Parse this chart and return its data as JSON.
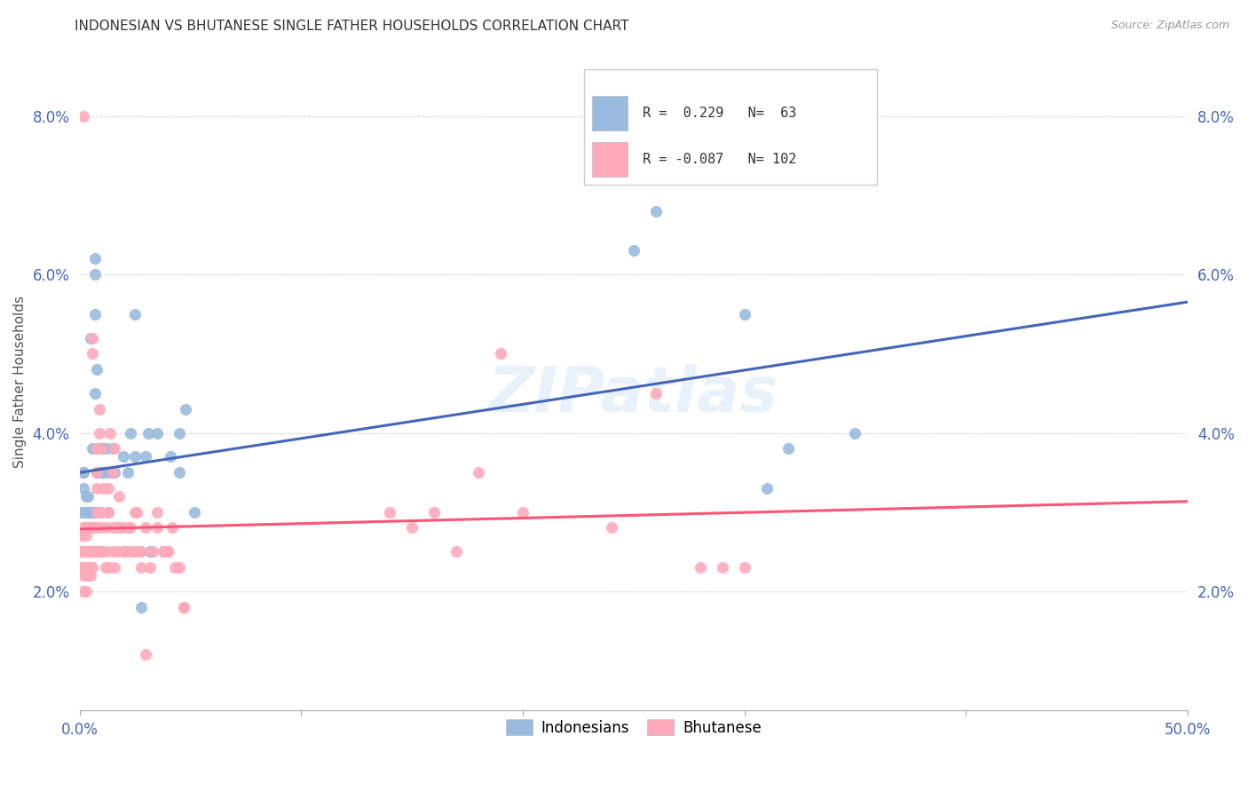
{
  "title": "INDONESIAN VS BHUTANESE SINGLE FATHER HOUSEHOLDS CORRELATION CHART",
  "source": "Source: ZipAtlas.com",
  "ylabel": "Single Father Households",
  "legend_blue_label": "Indonesians",
  "legend_pink_label": "Bhutanese",
  "legend_blue_text": "R =  0.229   N=  63",
  "legend_pink_text": "R = -0.087   N= 102",
  "blue_color": "#99BBDD",
  "pink_color": "#FFAABB",
  "trendline_blue_color": "#4466BB",
  "trendline_pink_color": "#FF5577",
  "trendline_dashed_color": "#AABBCC",
  "watermark": "ZIPatlas",
  "xmin": 0.0,
  "xmax": 0.5,
  "ymin": 0.005,
  "ymax": 0.088,
  "ytick_vals": [
    0.02,
    0.04,
    0.06,
    0.08
  ],
  "xtick_vals": [
    0.0,
    0.1,
    0.2,
    0.3,
    0.4,
    0.5
  ],
  "blue_points": [
    [
      0.001,
      0.03
    ],
    [
      0.002,
      0.035
    ],
    [
      0.002,
      0.033
    ],
    [
      0.002,
      0.035
    ],
    [
      0.003,
      0.03
    ],
    [
      0.003,
      0.032
    ],
    [
      0.003,
      0.03
    ],
    [
      0.003,
      0.028
    ],
    [
      0.003,
      0.03
    ],
    [
      0.004,
      0.03
    ],
    [
      0.004,
      0.028
    ],
    [
      0.004,
      0.03
    ],
    [
      0.004,
      0.032
    ],
    [
      0.005,
      0.03
    ],
    [
      0.005,
      0.028
    ],
    [
      0.005,
      0.052
    ],
    [
      0.005,
      0.03
    ],
    [
      0.006,
      0.03
    ],
    [
      0.006,
      0.028
    ],
    [
      0.006,
      0.03
    ],
    [
      0.006,
      0.038
    ],
    [
      0.007,
      0.045
    ],
    [
      0.007,
      0.03
    ],
    [
      0.007,
      0.055
    ],
    [
      0.007,
      0.06
    ],
    [
      0.007,
      0.062
    ],
    [
      0.008,
      0.048
    ],
    [
      0.008,
      0.03
    ],
    [
      0.008,
      0.035
    ],
    [
      0.009,
      0.03
    ],
    [
      0.01,
      0.035
    ],
    [
      0.01,
      0.035
    ],
    [
      0.01,
      0.038
    ],
    [
      0.011,
      0.035
    ],
    [
      0.012,
      0.038
    ],
    [
      0.013,
      0.035
    ],
    [
      0.013,
      0.03
    ],
    [
      0.015,
      0.038
    ],
    [
      0.015,
      0.035
    ],
    [
      0.016,
      0.035
    ],
    [
      0.018,
      0.028
    ],
    [
      0.02,
      0.037
    ],
    [
      0.022,
      0.035
    ],
    [
      0.023,
      0.04
    ],
    [
      0.025,
      0.037
    ],
    [
      0.025,
      0.055
    ],
    [
      0.028,
      0.018
    ],
    [
      0.03,
      0.037
    ],
    [
      0.031,
      0.04
    ],
    [
      0.032,
      0.025
    ],
    [
      0.035,
      0.04
    ],
    [
      0.038,
      0.025
    ],
    [
      0.041,
      0.037
    ],
    [
      0.045,
      0.035
    ],
    [
      0.045,
      0.04
    ],
    [
      0.048,
      0.043
    ],
    [
      0.052,
      0.03
    ],
    [
      0.25,
      0.063
    ],
    [
      0.26,
      0.068
    ],
    [
      0.3,
      0.055
    ],
    [
      0.31,
      0.033
    ],
    [
      0.32,
      0.038
    ],
    [
      0.35,
      0.04
    ]
  ],
  "pink_points": [
    [
      0.001,
      0.027
    ],
    [
      0.001,
      0.025
    ],
    [
      0.001,
      0.023
    ],
    [
      0.002,
      0.028
    ],
    [
      0.002,
      0.025
    ],
    [
      0.002,
      0.023
    ],
    [
      0.002,
      0.02
    ],
    [
      0.002,
      0.022
    ],
    [
      0.002,
      0.025
    ],
    [
      0.002,
      0.08
    ],
    [
      0.003,
      0.027
    ],
    [
      0.003,
      0.023
    ],
    [
      0.003,
      0.02
    ],
    [
      0.003,
      0.022
    ],
    [
      0.003,
      0.025
    ],
    [
      0.003,
      0.028
    ],
    [
      0.004,
      0.022
    ],
    [
      0.004,
      0.025
    ],
    [
      0.004,
      0.023
    ],
    [
      0.004,
      0.025
    ],
    [
      0.004,
      0.028
    ],
    [
      0.005,
      0.022
    ],
    [
      0.005,
      0.025
    ],
    [
      0.005,
      0.028
    ],
    [
      0.005,
      0.023
    ],
    [
      0.005,
      0.023
    ],
    [
      0.006,
      0.025
    ],
    [
      0.006,
      0.023
    ],
    [
      0.006,
      0.025
    ],
    [
      0.006,
      0.028
    ],
    [
      0.006,
      0.05
    ],
    [
      0.006,
      0.052
    ],
    [
      0.007,
      0.028
    ],
    [
      0.007,
      0.025
    ],
    [
      0.007,
      0.028
    ],
    [
      0.008,
      0.03
    ],
    [
      0.008,
      0.033
    ],
    [
      0.008,
      0.035
    ],
    [
      0.008,
      0.038
    ],
    [
      0.008,
      0.025
    ],
    [
      0.009,
      0.04
    ],
    [
      0.009,
      0.043
    ],
    [
      0.009,
      0.028
    ],
    [
      0.009,
      0.025
    ],
    [
      0.01,
      0.03
    ],
    [
      0.01,
      0.025
    ],
    [
      0.01,
      0.038
    ],
    [
      0.01,
      0.025
    ],
    [
      0.011,
      0.033
    ],
    [
      0.012,
      0.028
    ],
    [
      0.012,
      0.025
    ],
    [
      0.012,
      0.023
    ],
    [
      0.013,
      0.03
    ],
    [
      0.013,
      0.033
    ],
    [
      0.013,
      0.023
    ],
    [
      0.014,
      0.04
    ],
    [
      0.015,
      0.035
    ],
    [
      0.015,
      0.025
    ],
    [
      0.015,
      0.028
    ],
    [
      0.016,
      0.038
    ],
    [
      0.016,
      0.023
    ],
    [
      0.017,
      0.025
    ],
    [
      0.018,
      0.028
    ],
    [
      0.018,
      0.032
    ],
    [
      0.019,
      0.028
    ],
    [
      0.02,
      0.025
    ],
    [
      0.021,
      0.025
    ],
    [
      0.021,
      0.025
    ],
    [
      0.022,
      0.028
    ],
    [
      0.023,
      0.028
    ],
    [
      0.024,
      0.025
    ],
    [
      0.025,
      0.03
    ],
    [
      0.025,
      0.025
    ],
    [
      0.026,
      0.03
    ],
    [
      0.027,
      0.025
    ],
    [
      0.028,
      0.023
    ],
    [
      0.028,
      0.025
    ],
    [
      0.03,
      0.012
    ],
    [
      0.03,
      0.028
    ],
    [
      0.032,
      0.023
    ],
    [
      0.033,
      0.025
    ],
    [
      0.035,
      0.03
    ],
    [
      0.035,
      0.028
    ],
    [
      0.038,
      0.025
    ],
    [
      0.04,
      0.025
    ],
    [
      0.04,
      0.025
    ],
    [
      0.04,
      0.025
    ],
    [
      0.042,
      0.028
    ],
    [
      0.043,
      0.023
    ],
    [
      0.045,
      0.023
    ],
    [
      0.047,
      0.018
    ],
    [
      0.047,
      0.018
    ],
    [
      0.14,
      0.03
    ],
    [
      0.15,
      0.028
    ],
    [
      0.16,
      0.03
    ],
    [
      0.17,
      0.025
    ],
    [
      0.18,
      0.035
    ],
    [
      0.19,
      0.05
    ],
    [
      0.2,
      0.03
    ],
    [
      0.24,
      0.028
    ],
    [
      0.26,
      0.045
    ],
    [
      0.28,
      0.023
    ],
    [
      0.29,
      0.023
    ],
    [
      0.3,
      0.023
    ]
  ]
}
